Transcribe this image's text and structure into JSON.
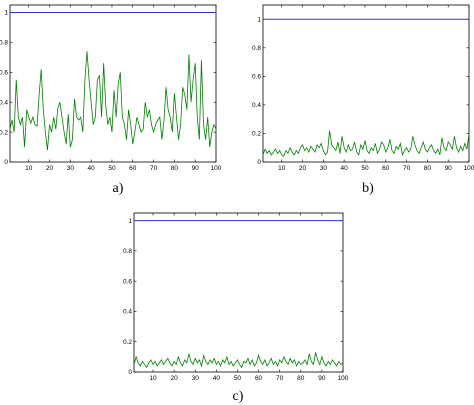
{
  "chart_data": [
    {
      "panel_label": "a)",
      "type": "line",
      "xlim": [
        1,
        100
      ],
      "ylim": [
        0,
        1.05
      ],
      "xticks": [
        "10",
        "20",
        "30",
        "40",
        "50",
        "60",
        "70",
        "80",
        "90",
        "100"
      ],
      "yticks": [
        "0",
        "0.2",
        "0.4",
        "0.6",
        "0.8",
        "1"
      ],
      "series": [
        {
          "color": "#3333cc",
          "x": [
            1,
            100
          ],
          "values": [
            1,
            1
          ]
        },
        {
          "color": "#008000",
          "x_start": 1,
          "values": [
            0.22,
            0.28,
            0.2,
            0.55,
            0.3,
            0.25,
            0.3,
            0.1,
            0.35,
            0.3,
            0.26,
            0.3,
            0.25,
            0.24,
            0.45,
            0.62,
            0.35,
            0.2,
            0.08,
            0.25,
            0.2,
            0.3,
            0.22,
            0.36,
            0.4,
            0.3,
            0.2,
            0.12,
            0.32,
            0.1,
            0.15,
            0.42,
            0.3,
            0.28,
            0.3,
            0.2,
            0.55,
            0.74,
            0.55,
            0.4,
            0.25,
            0.3,
            0.55,
            0.58,
            0.3,
            0.66,
            0.38,
            0.25,
            0.3,
            0.2,
            0.48,
            0.3,
            0.52,
            0.6,
            0.3,
            0.25,
            0.15,
            0.35,
            0.25,
            0.12,
            0.2,
            0.3,
            0.25,
            0.2,
            0.22,
            0.4,
            0.3,
            0.35,
            0.25,
            0.2,
            0.25,
            0.28,
            0.3,
            0.15,
            0.28,
            0.5,
            0.35,
            0.3,
            0.2,
            0.46,
            0.3,
            0.15,
            0.25,
            0.5,
            0.45,
            0.35,
            0.72,
            0.4,
            0.55,
            0.66,
            0.3,
            0.15,
            0.68,
            0.25,
            0.15,
            0.3,
            0.1,
            0.2,
            0.25,
            0.22
          ]
        }
      ]
    },
    {
      "panel_label": "b)",
      "type": "line",
      "xlim": [
        1,
        100
      ],
      "ylim": [
        0,
        1.1
      ],
      "xticks": [
        "10",
        "20",
        "30",
        "40",
        "50",
        "60",
        "70",
        "80",
        "90",
        "100"
      ],
      "yticks": [
        "0",
        "0.2",
        "0.4",
        "0.6",
        "0.8",
        "1"
      ],
      "series": [
        {
          "color": "#3333cc",
          "x": [
            1,
            100
          ],
          "values": [
            1,
            1
          ]
        },
        {
          "color": "#008000",
          "x_start": 1,
          "values": [
            0.05,
            0.09,
            0.06,
            0.08,
            0.05,
            0.07,
            0.09,
            0.06,
            0.08,
            0.05,
            0.04,
            0.08,
            0.06,
            0.1,
            0.07,
            0.05,
            0.08,
            0.06,
            0.1,
            0.12,
            0.08,
            0.1,
            0.07,
            0.11,
            0.09,
            0.07,
            0.12,
            0.1,
            0.13,
            0.08,
            0.05,
            0.07,
            0.22,
            0.12,
            0.1,
            0.08,
            0.14,
            0.06,
            0.18,
            0.1,
            0.07,
            0.12,
            0.08,
            0.09,
            0.14,
            0.07,
            0.05,
            0.12,
            0.09,
            0.15,
            0.08,
            0.06,
            0.1,
            0.08,
            0.13,
            0.06,
            0.09,
            0.14,
            0.12,
            0.07,
            0.1,
            0.16,
            0.08,
            0.06,
            0.11,
            0.09,
            0.13,
            0.05,
            0.08,
            0.1,
            0.07,
            0.09,
            0.18,
            0.12,
            0.08,
            0.06,
            0.1,
            0.14,
            0.09,
            0.07,
            0.1,
            0.12,
            0.08,
            0.06,
            0.09,
            0.05,
            0.17,
            0.1,
            0.08,
            0.14,
            0.12,
            0.09,
            0.18,
            0.1,
            0.07,
            0.11,
            0.08,
            0.13,
            0.09,
            0.2
          ]
        }
      ]
    },
    {
      "panel_label": "c)",
      "type": "line",
      "xlim": [
        1,
        100
      ],
      "ylim": [
        0,
        1.05
      ],
      "xticks": [
        "10",
        "20",
        "30",
        "40",
        "50",
        "60",
        "70",
        "80",
        "90",
        "100"
      ],
      "yticks": [
        "0",
        "0.2",
        "0.4",
        "0.6",
        "0.8",
        "1"
      ],
      "series": [
        {
          "color": "#3333cc",
          "x": [
            1,
            100
          ],
          "values": [
            1,
            1
          ]
        },
        {
          "color": "#008000",
          "x_start": 1,
          "values": [
            0.05,
            0.1,
            0.06,
            0.04,
            0.07,
            0.05,
            0.03,
            0.06,
            0.08,
            0.05,
            0.07,
            0.04,
            0.06,
            0.08,
            0.05,
            0.07,
            0.09,
            0.06,
            0.04,
            0.07,
            0.05,
            0.1,
            0.06,
            0.04,
            0.08,
            0.06,
            0.12,
            0.07,
            0.05,
            0.09,
            0.06,
            0.08,
            0.04,
            0.11,
            0.07,
            0.05,
            0.08,
            0.06,
            0.09,
            0.05,
            0.07,
            0.04,
            0.08,
            0.06,
            0.1,
            0.05,
            0.07,
            0.04,
            0.06,
            0.08,
            0.05,
            0.03,
            0.07,
            0.06,
            0.09,
            0.05,
            0.08,
            0.04,
            0.06,
            0.11,
            0.07,
            0.05,
            0.08,
            0.04,
            0.06,
            0.09,
            0.05,
            0.07,
            0.04,
            0.08,
            0.06,
            0.1,
            0.07,
            0.05,
            0.09,
            0.06,
            0.08,
            0.04,
            0.07,
            0.05,
            0.06,
            0.08,
            0.05,
            0.12,
            0.07,
            0.05,
            0.13,
            0.08,
            0.05,
            0.1,
            0.06,
            0.04,
            0.07,
            0.05,
            0.08,
            0.06,
            0.04,
            0.07,
            0.05,
            0.06
          ]
        }
      ]
    }
  ]
}
